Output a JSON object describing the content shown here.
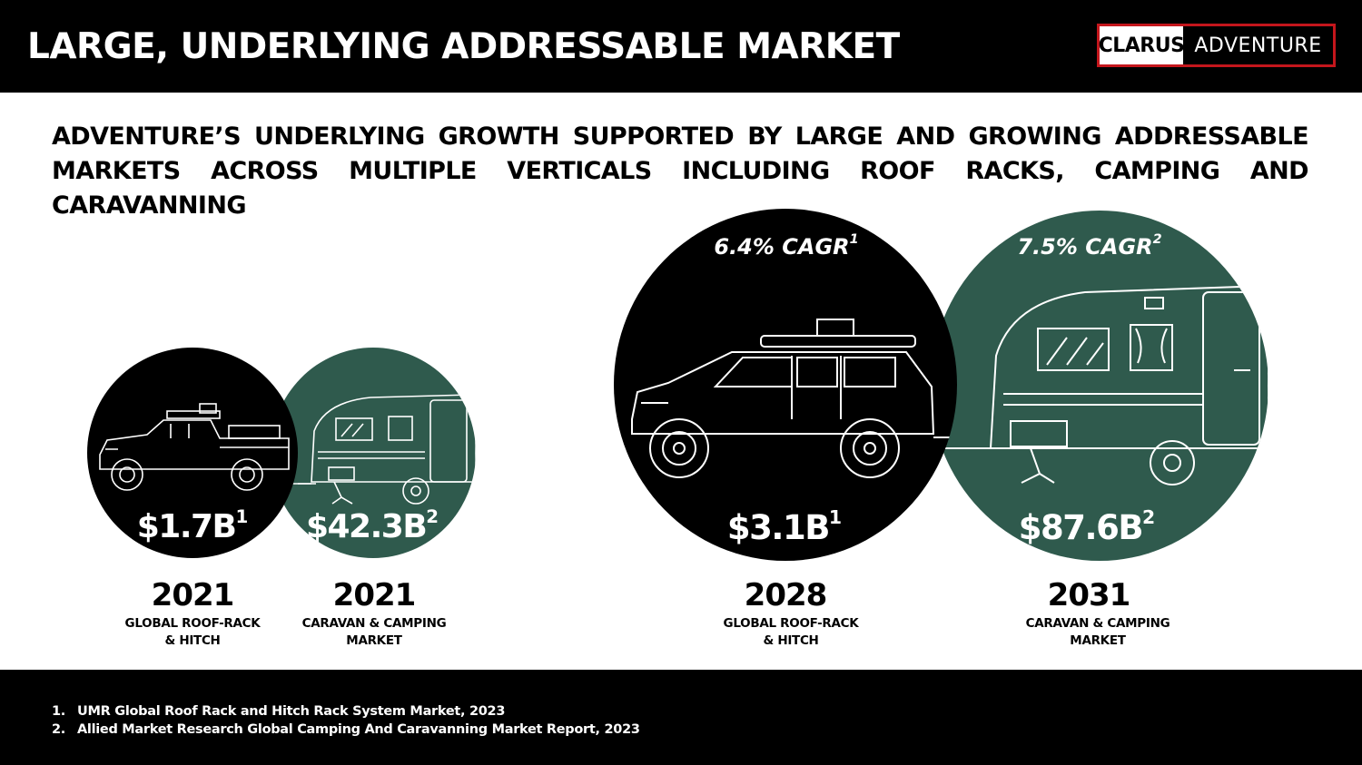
{
  "header": {
    "title": "LARGE, UNDERLYING ADDRESSABLE MARKET",
    "logo_left": "CLARUS",
    "logo_right": "ADVENTURE",
    "logo_border_color": "#c4161c"
  },
  "subtitle": "ADVENTURE’S UNDERLYING GROWTH SUPPORTED BY LARGE AND GROWING ADDRESSABLE MARKETS ACROSS MULTIPLE VERTICALS INCLUDING ROOF RACKS, CAMPING AND CARAVANNING",
  "colors": {
    "black_circle": "#000000",
    "green_circle": "#2f5a4d"
  },
  "markets": [
    {
      "value": "$1.7B",
      "note": "1",
      "year": "2021",
      "label_line1": "GLOBAL ROOF-RACK",
      "label_line2": "& HITCH",
      "icon": "pickup-truck-icon"
    },
    {
      "value": "$42.3B",
      "note": "2",
      "year": "2021",
      "label_line1": "CARAVAN & CAMPING",
      "label_line2": "MARKET",
      "icon": "caravan-icon"
    },
    {
      "value": "$3.1B",
      "note": "1",
      "year": "2028",
      "label_line1": "GLOBAL ROOF-RACK",
      "label_line2": "& HITCH",
      "cagr": "6.4% CAGR",
      "cagr_note": "1",
      "icon": "suv-icon"
    },
    {
      "value": "$87.6B",
      "note": "2",
      "year": "2031",
      "label_line1": "CARAVAN & CAMPING",
      "label_line2": "MARKET",
      "cagr": "7.5% CAGR",
      "cagr_note": "2",
      "icon": "caravan-icon"
    }
  ],
  "footnotes": [
    {
      "num": "1.",
      "text": "UMR Global Roof Rack and Hitch Rack System Market, 2023"
    },
    {
      "num": "2.",
      "text": "Allied Market Research Global Camping And Caravanning Market Report, 2023"
    }
  ]
}
